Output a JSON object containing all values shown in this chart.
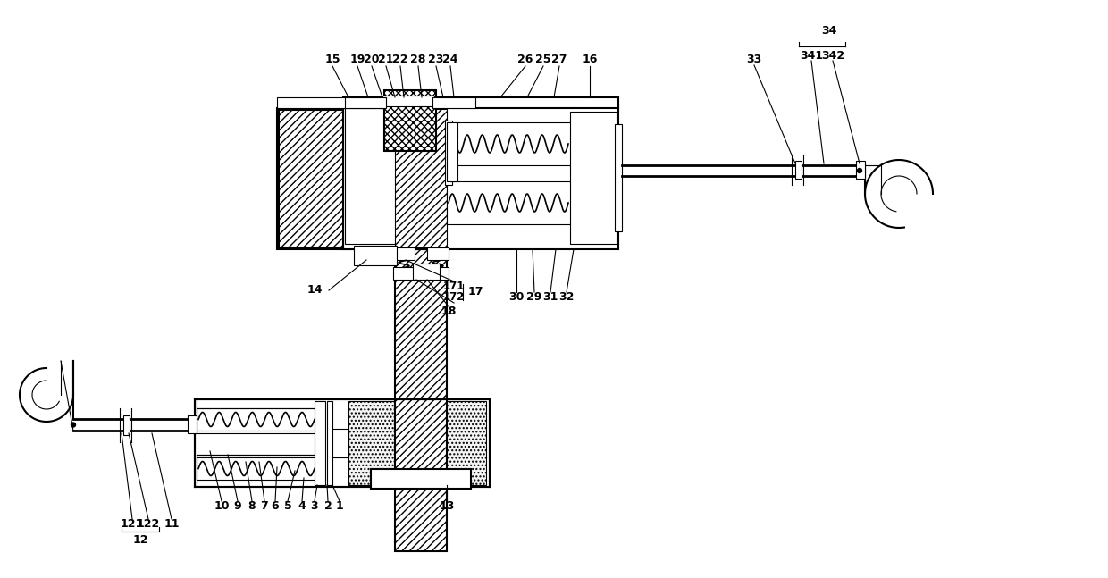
{
  "bg_color": "#ffffff",
  "line_color": "#000000",
  "fig_width": 12.4,
  "fig_height": 6.47,
  "lw_main": 1.5,
  "lw_thin": 0.8,
  "font_size": 9.0
}
